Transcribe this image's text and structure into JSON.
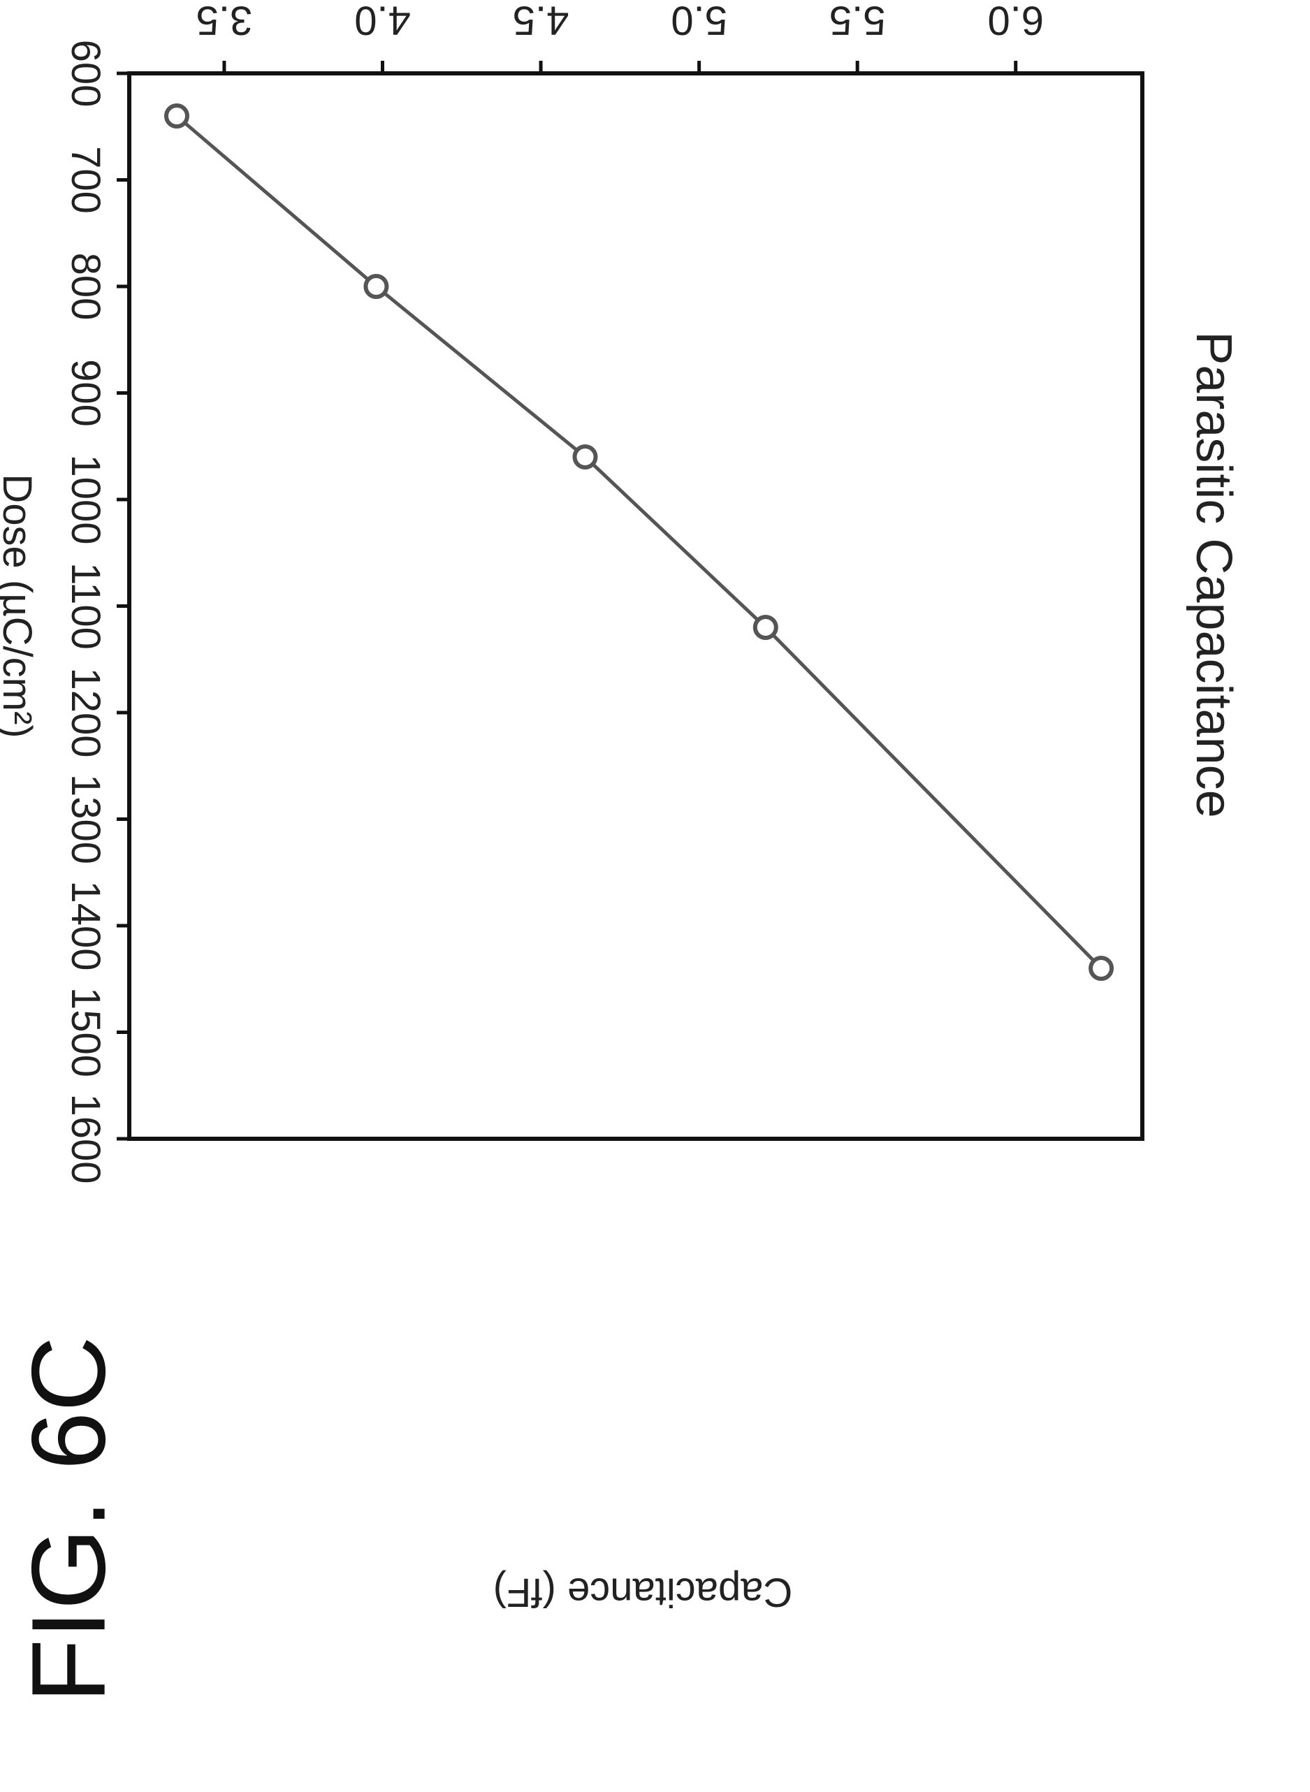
{
  "figure": {
    "label": "FIG. 6C"
  },
  "chart_data": {
    "type": "line",
    "title": "Parasitic Capacitance",
    "xlabel": "Dose (µC/cm²)",
    "ylabel": "Capacitance (fF)",
    "x_ticks": [
      600,
      700,
      800,
      900,
      1000,
      1100,
      1200,
      1300,
      1400,
      1500,
      1600
    ],
    "y_ticks": [
      3.5,
      4.0,
      4.5,
      5.0,
      5.5,
      6.0
    ],
    "xlim": [
      600,
      1600
    ],
    "ylim": [
      3.2,
      6.4
    ],
    "grid": false,
    "series": [
      {
        "x": [
          640,
          800,
          960,
          1120,
          1440
        ],
        "y": [
          3.35,
          3.98,
          4.64,
          5.21,
          6.27
        ],
        "marker": "open-circle",
        "color": "#555555"
      }
    ]
  }
}
